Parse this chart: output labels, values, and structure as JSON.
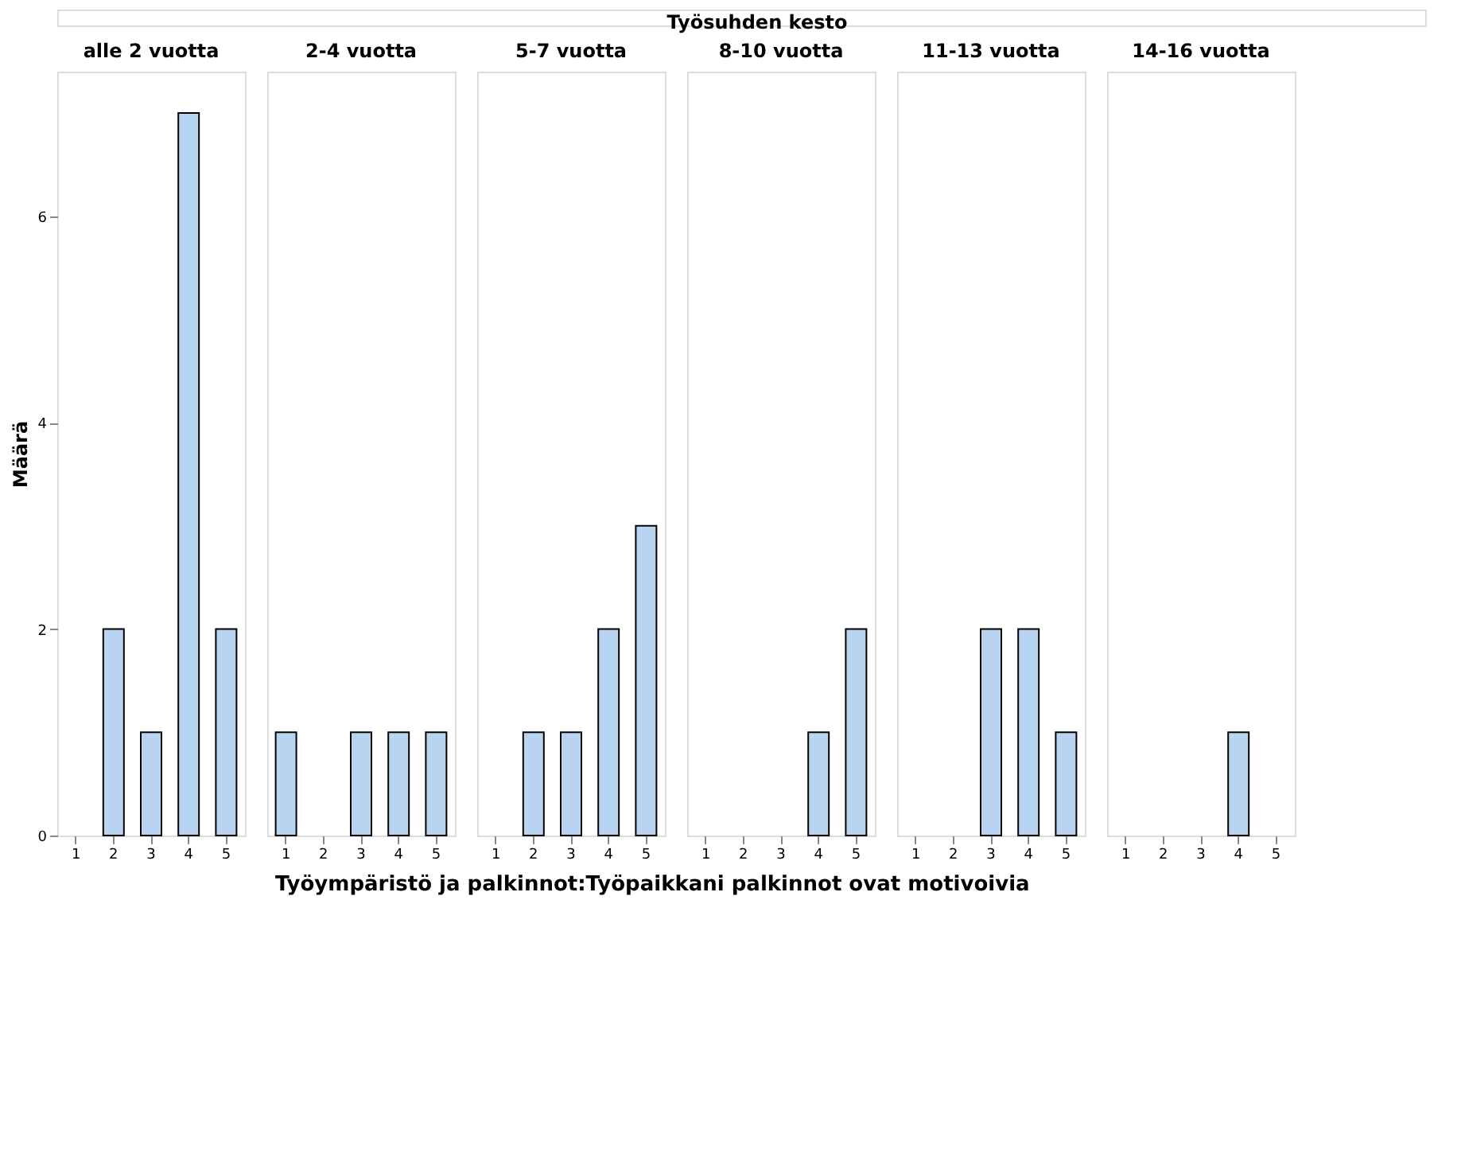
{
  "chart_data": [
    {
      "type": "bar",
      "title": "alle 2 vuotta",
      "annotations": [
        "Työsuhden kesto"
      ],
      "xlabel": "Työympäristö ja palkinnot:Työpaikkani palkinnot ovat motivoivia",
      "ylabel": "Määrä",
      "categories": [
        "1",
        "2",
        "3",
        "4",
        "5"
      ],
      "values": [
        0,
        2,
        1,
        7,
        2
      ],
      "color": "#b8d4f0",
      "ylim": [
        0,
        7.4
      ],
      "yticks": [
        0,
        2,
        4,
        6
      ],
      "grid": false
    },
    {
      "type": "bar",
      "title": "2-4 vuotta",
      "categories": [
        "1",
        "2",
        "3",
        "4",
        "5"
      ],
      "values": [
        1,
        0,
        1,
        1,
        1
      ],
      "color": "#b8d4f0",
      "ylim": [
        0,
        7.4
      ],
      "tick_labels": "x",
      "grid": false
    },
    {
      "type": "bar",
      "title": "5-7 vuotta",
      "categories": [
        "1",
        "2",
        "3",
        "4",
        "5"
      ],
      "values": [
        0,
        1,
        1,
        2,
        3
      ],
      "color": "#b8d4f0",
      "ylim": [
        0,
        7.4
      ],
      "tick_labels": "x",
      "grid": false
    },
    {
      "type": "bar",
      "title": "8-10 vuotta",
      "categories": [
        "1",
        "2",
        "3",
        "4",
        "5"
      ],
      "values": [
        0,
        0,
        0,
        1,
        2
      ],
      "color": "#b8d4f0",
      "ylim": [
        0,
        7.4
      ],
      "tick_labels": "x",
      "grid": false
    },
    {
      "type": "bar",
      "title": "11-13 vuotta",
      "categories": [
        "1",
        "2",
        "3",
        "4",
        "5"
      ],
      "values": [
        0,
        0,
        2,
        2,
        1
      ],
      "color": "#b8d4f0",
      "ylim": [
        0,
        7.4
      ],
      "tick_labels": "x",
      "grid": false
    },
    {
      "type": "bar",
      "title": "14-16 vuotta",
      "categories": [
        "1",
        "2",
        "3",
        "4",
        "5"
      ],
      "values": [
        0,
        0,
        0,
        1,
        0
      ],
      "color": "#b8d4f0",
      "ylim": [
        0,
        7.4
      ],
      "tick_labels": "x",
      "grid": false
    }
  ]
}
